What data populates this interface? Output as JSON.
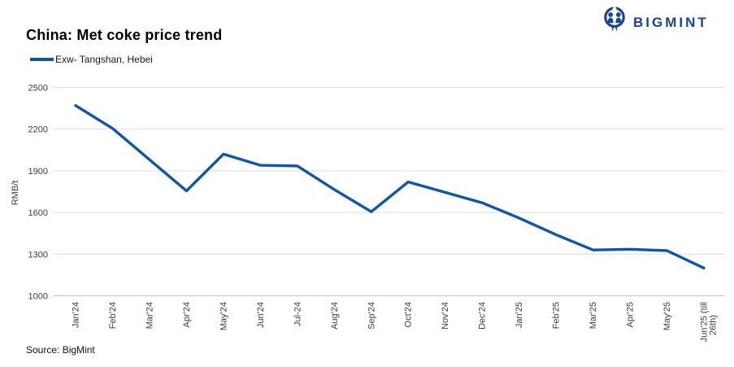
{
  "header": {
    "title": "China: Met coke price trend",
    "legend_label": "Exw- Tangshan, Hebei"
  },
  "logo": {
    "text": "BIGMINT",
    "icon": "bigmint-owl-icon",
    "color": "#1a4499"
  },
  "footer": {
    "source": "Source: BigMint"
  },
  "colors": {
    "line": "#0f56ab",
    "grid": "#dcdcdc",
    "axis_bottom": "#c0c0c0",
    "tick_text": "#3d3d3d"
  },
  "chart_data": {
    "type": "line",
    "title": "China: Met coke price trend",
    "xlabel": "",
    "ylabel": "RMB/t",
    "ylim": [
      1000,
      2500
    ],
    "yticks": [
      2500,
      2200,
      1900,
      1600,
      1300,
      1000
    ],
    "grid": "horizontal",
    "legend_position": "top-left",
    "categories": [
      "Jan'24",
      "Feb'24",
      "Mar'24",
      "Apr'24",
      "May'24",
      "Jun'24",
      "Jul-24",
      "Aug'24",
      "Sep'24",
      "Oct'24",
      "Nov'24",
      "Dec'24",
      "Jan'25",
      "Feb'25",
      "Mar'25",
      "Apr'25",
      "May'25",
      "Jun'25 (till 26th)"
    ],
    "series": [
      {
        "name": "Exw- Tangshan, Hebei",
        "color": "#0f56ab",
        "values": [
          2370,
          2205,
          1980,
          1755,
          2020,
          1940,
          1935,
          1765,
          1605,
          1820,
          1745,
          1670,
          1560,
          1440,
          1330,
          1335,
          1325,
          1200
        ]
      }
    ]
  }
}
